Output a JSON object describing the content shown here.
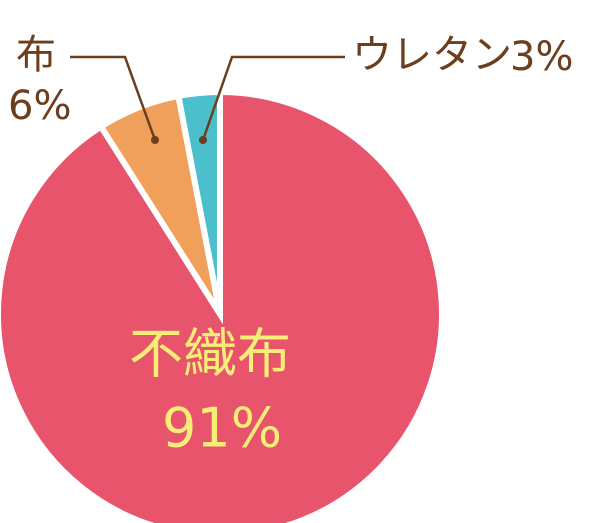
{
  "chart_data": {
    "type": "pie",
    "categories": [
      "不織布",
      "布",
      "ウレタン"
    ],
    "values": [
      91,
      6,
      3
    ],
    "value_labels": [
      "91%",
      "6%",
      "3%"
    ],
    "colors": [
      "#e8546c",
      "#f0a05a",
      "#4bbfcb"
    ]
  }
}
